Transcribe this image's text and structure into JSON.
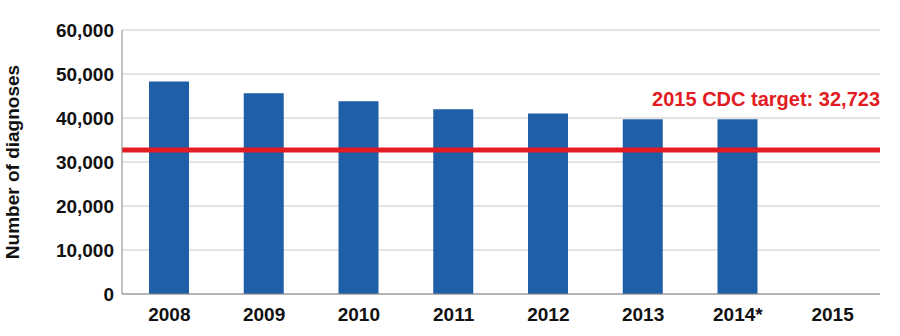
{
  "chart_data": {
    "type": "bar",
    "categories": [
      "2008",
      "2009",
      "2010",
      "2011",
      "2012",
      "2013",
      "2014*",
      "2015"
    ],
    "values": [
      48300,
      45600,
      43800,
      42000,
      41000,
      39700,
      39700,
      null
    ],
    "color": "#1f5fa8",
    "y_label": "Number of diagnoses",
    "ylim": [
      0,
      60000
    ],
    "yticks": [
      0,
      {
        "value": 10000,
        "label": "10,000"
      },
      {
        "value": 20000,
        "label": "20,000"
      },
      {
        "value": 30000,
        "label": "30,000"
      },
      {
        "value": 40000,
        "label": "40,000"
      },
      {
        "value": 50000,
        "label": "50,000"
      },
      {
        "value": 60000,
        "label": "60,000"
      }
    ],
    "grid": true,
    "annotations": [
      {
        "value": 32723,
        "text": "2015 CDC target: 32,723",
        "color": "#e31b23"
      }
    ]
  }
}
